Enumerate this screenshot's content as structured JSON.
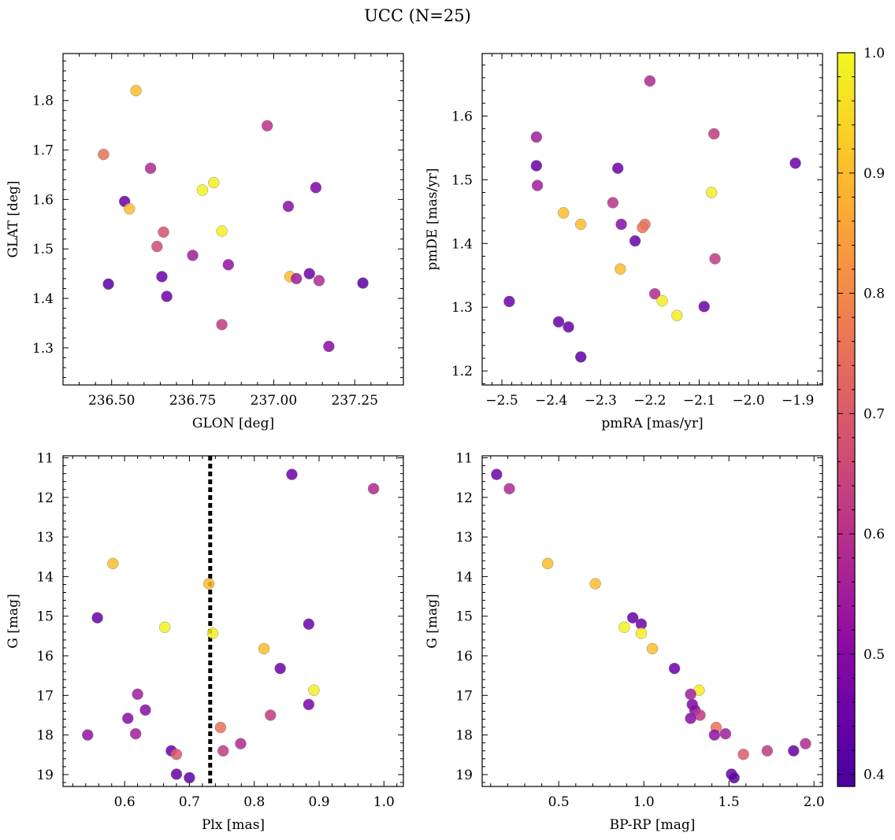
{
  "title": "UCC (N=25)",
  "chart_data": [
    {
      "type": "scatter",
      "xlabel": "GLON [deg]",
      "ylabel": "GLAT [deg]",
      "xlim": [
        236.35,
        237.4
      ],
      "ylim": [
        1.225,
        1.895
      ],
      "xticks": [
        "236.50",
        "236.75",
        "237.00",
        "237.25"
      ],
      "yticks": [
        "1.3",
        "1.4",
        "1.5",
        "1.6",
        "1.7",
        "1.8"
      ],
      "invert_y": false,
      "points": [
        {
          "x": 236.575,
          "y": 1.82,
          "c": 0.9
        },
        {
          "x": 236.475,
          "y": 1.691,
          "c": 0.75
        },
        {
          "x": 236.98,
          "y": 1.749,
          "c": 0.6
        },
        {
          "x": 236.62,
          "y": 1.663,
          "c": 0.58
        },
        {
          "x": 236.815,
          "y": 1.634,
          "c": 0.98
        },
        {
          "x": 236.78,
          "y": 1.619,
          "c": 0.99
        },
        {
          "x": 237.13,
          "y": 1.624,
          "c": 0.48
        },
        {
          "x": 236.54,
          "y": 1.596,
          "c": 0.44
        },
        {
          "x": 236.555,
          "y": 1.581,
          "c": 0.9
        },
        {
          "x": 237.045,
          "y": 1.586,
          "c": 0.5
        },
        {
          "x": 236.84,
          "y": 1.536,
          "c": 0.98
        },
        {
          "x": 236.66,
          "y": 1.534,
          "c": 0.68
        },
        {
          "x": 236.64,
          "y": 1.505,
          "c": 0.66
        },
        {
          "x": 236.75,
          "y": 1.487,
          "c": 0.55
        },
        {
          "x": 236.86,
          "y": 1.468,
          "c": 0.52
        },
        {
          "x": 236.655,
          "y": 1.444,
          "c": 0.45
        },
        {
          "x": 237.05,
          "y": 1.444,
          "c": 0.9
        },
        {
          "x": 237.11,
          "y": 1.45,
          "c": 0.45
        },
        {
          "x": 237.07,
          "y": 1.44,
          "c": 0.55
        },
        {
          "x": 237.14,
          "y": 1.436,
          "c": 0.58
        },
        {
          "x": 236.49,
          "y": 1.429,
          "c": 0.42
        },
        {
          "x": 237.275,
          "y": 1.431,
          "c": 0.42
        },
        {
          "x": 236.67,
          "y": 1.404,
          "c": 0.45
        },
        {
          "x": 236.84,
          "y": 1.347,
          "c": 0.62
        },
        {
          "x": 237.17,
          "y": 1.303,
          "c": 0.5
        }
      ]
    },
    {
      "type": "scatter",
      "xlabel": "pmRA [mas/yr]",
      "ylabel": "pmDE [mas/yr]",
      "xlim": [
        -2.54,
        -1.85
      ],
      "ylim": [
        1.178,
        1.698
      ],
      "xticks": [
        "−2.5",
        "−2.4",
        "−2.3",
        "−2.2",
        "−2.1",
        "−2.0",
        "−1.9"
      ],
      "yticks": [
        "1.2",
        "1.3",
        "1.4",
        "1.5",
        "1.6"
      ],
      "invert_y": false,
      "points": [
        {
          "x": -2.2,
          "y": 1.655,
          "c": 0.58
        },
        {
          "x": -2.07,
          "y": 1.572,
          "c": 0.62
        },
        {
          "x": -2.43,
          "y": 1.567,
          "c": 0.55
        },
        {
          "x": -1.905,
          "y": 1.526,
          "c": 0.45
        },
        {
          "x": -2.43,
          "y": 1.522,
          "c": 0.44
        },
        {
          "x": -2.265,
          "y": 1.518,
          "c": 0.45
        },
        {
          "x": -2.428,
          "y": 1.491,
          "c": 0.55
        },
        {
          "x": -2.075,
          "y": 1.48,
          "c": 0.98
        },
        {
          "x": -2.275,
          "y": 1.464,
          "c": 0.6
        },
        {
          "x": -2.375,
          "y": 1.448,
          "c": 0.9
        },
        {
          "x": -2.34,
          "y": 1.43,
          "c": 0.9
        },
        {
          "x": -2.258,
          "y": 1.43,
          "c": 0.5
        },
        {
          "x": -2.21,
          "y": 1.43,
          "c": 0.75
        },
        {
          "x": -2.215,
          "y": 1.425,
          "c": 0.76
        },
        {
          "x": -2.23,
          "y": 1.404,
          "c": 0.45
        },
        {
          "x": -2.068,
          "y": 1.376,
          "c": 0.62
        },
        {
          "x": -2.26,
          "y": 1.36,
          "c": 0.9
        },
        {
          "x": -2.19,
          "y": 1.321,
          "c": 0.58
        },
        {
          "x": -2.175,
          "y": 1.31,
          "c": 0.98
        },
        {
          "x": -2.485,
          "y": 1.309,
          "c": 0.45
        },
        {
          "x": -2.09,
          "y": 1.301,
          "c": 0.45
        },
        {
          "x": -2.145,
          "y": 1.287,
          "c": 0.98
        },
        {
          "x": -2.385,
          "y": 1.277,
          "c": 0.44
        },
        {
          "x": -2.365,
          "y": 1.269,
          "c": 0.44
        },
        {
          "x": -2.34,
          "y": 1.222,
          "c": 0.42
        }
      ]
    },
    {
      "type": "scatter",
      "xlabel": "Plx [mas]",
      "ylabel": "G [mag]",
      "xlim": [
        0.505,
        1.03
      ],
      "ylim": [
        10.95,
        19.3
      ],
      "xticks": [
        "0.6",
        "0.7",
        "0.8",
        "0.9",
        "1.0"
      ],
      "yticks": [
        "11",
        "12",
        "13",
        "14",
        "15",
        "16",
        "17",
        "18",
        "19"
      ],
      "invert_y": true,
      "vline": 0.732,
      "points": [
        {
          "x": 0.858,
          "y": 11.42,
          "c": 0.45
        },
        {
          "x": 0.984,
          "y": 11.78,
          "c": 0.58
        },
        {
          "x": 0.582,
          "y": 13.67,
          "c": 0.9
        },
        {
          "x": 0.73,
          "y": 14.18,
          "c": 0.9
        },
        {
          "x": 0.558,
          "y": 15.04,
          "c": 0.44
        },
        {
          "x": 0.662,
          "y": 15.28,
          "c": 0.99
        },
        {
          "x": 0.736,
          "y": 15.43,
          "c": 0.98
        },
        {
          "x": 0.884,
          "y": 15.2,
          "c": 0.45
        },
        {
          "x": 0.815,
          "y": 15.82,
          "c": 0.9
        },
        {
          "x": 0.84,
          "y": 16.32,
          "c": 0.45
        },
        {
          "x": 0.892,
          "y": 16.87,
          "c": 0.98
        },
        {
          "x": 0.62,
          "y": 16.97,
          "c": 0.55
        },
        {
          "x": 0.632,
          "y": 17.37,
          "c": 0.5
        },
        {
          "x": 0.605,
          "y": 17.58,
          "c": 0.5
        },
        {
          "x": 0.825,
          "y": 17.5,
          "c": 0.62
        },
        {
          "x": 0.884,
          "y": 17.23,
          "c": 0.48
        },
        {
          "x": 0.748,
          "y": 17.81,
          "c": 0.75
        },
        {
          "x": 0.617,
          "y": 17.97,
          "c": 0.55
        },
        {
          "x": 0.543,
          "y": 18.0,
          "c": 0.52
        },
        {
          "x": 0.779,
          "y": 18.22,
          "c": 0.58
        },
        {
          "x": 0.672,
          "y": 18.4,
          "c": 0.44
        },
        {
          "x": 0.752,
          "y": 18.4,
          "c": 0.62
        },
        {
          "x": 0.68,
          "y": 18.49,
          "c": 0.7
        },
        {
          "x": 0.68,
          "y": 18.99,
          "c": 0.44
        },
        {
          "x": 0.7,
          "y": 19.08,
          "c": 0.42
        }
      ]
    },
    {
      "type": "scatter",
      "xlabel": "BP-RP [mag]",
      "ylabel": "G [mag]",
      "xlim": [
        0.05,
        2.05
      ],
      "ylim": [
        10.95,
        19.3
      ],
      "xticks": [
        "0.5",
        "1.0",
        "1.5",
        "2.0"
      ],
      "yticks": [
        "11",
        "12",
        "13",
        "14",
        "15",
        "16",
        "17",
        "18",
        "19"
      ],
      "invert_y": true,
      "points": [
        {
          "x": 0.135,
          "y": 11.42,
          "c": 0.45
        },
        {
          "x": 0.21,
          "y": 11.78,
          "c": 0.58
        },
        {
          "x": 0.435,
          "y": 13.67,
          "c": 0.9
        },
        {
          "x": 0.715,
          "y": 14.18,
          "c": 0.9
        },
        {
          "x": 0.935,
          "y": 15.04,
          "c": 0.44
        },
        {
          "x": 0.985,
          "y": 15.2,
          "c": 0.45
        },
        {
          "x": 0.885,
          "y": 15.28,
          "c": 0.99
        },
        {
          "x": 0.985,
          "y": 15.43,
          "c": 0.98
        },
        {
          "x": 1.05,
          "y": 15.82,
          "c": 0.9
        },
        {
          "x": 1.18,
          "y": 16.32,
          "c": 0.45
        },
        {
          "x": 1.325,
          "y": 16.87,
          "c": 0.98
        },
        {
          "x": 1.275,
          "y": 16.97,
          "c": 0.55
        },
        {
          "x": 1.285,
          "y": 17.23,
          "c": 0.48
        },
        {
          "x": 1.3,
          "y": 17.37,
          "c": 0.5
        },
        {
          "x": 1.33,
          "y": 17.5,
          "c": 0.62
        },
        {
          "x": 1.275,
          "y": 17.58,
          "c": 0.5
        },
        {
          "x": 1.425,
          "y": 17.81,
          "c": 0.75
        },
        {
          "x": 1.48,
          "y": 17.97,
          "c": 0.55
        },
        {
          "x": 1.415,
          "y": 18.0,
          "c": 0.52
        },
        {
          "x": 1.95,
          "y": 18.22,
          "c": 0.58
        },
        {
          "x": 1.725,
          "y": 18.4,
          "c": 0.62
        },
        {
          "x": 1.88,
          "y": 18.4,
          "c": 0.44
        },
        {
          "x": 1.585,
          "y": 18.49,
          "c": 0.7
        },
        {
          "x": 1.515,
          "y": 18.99,
          "c": 0.44
        },
        {
          "x": 1.53,
          "y": 19.08,
          "c": 0.42
        }
      ]
    }
  ],
  "colorbar": {
    "colormap": "plasma",
    "vmin": 0.39,
    "vmax": 1.0,
    "ticks": [
      "0.4",
      "0.5",
      "0.6",
      "0.7",
      "0.8",
      "0.9",
      "1.0"
    ]
  }
}
